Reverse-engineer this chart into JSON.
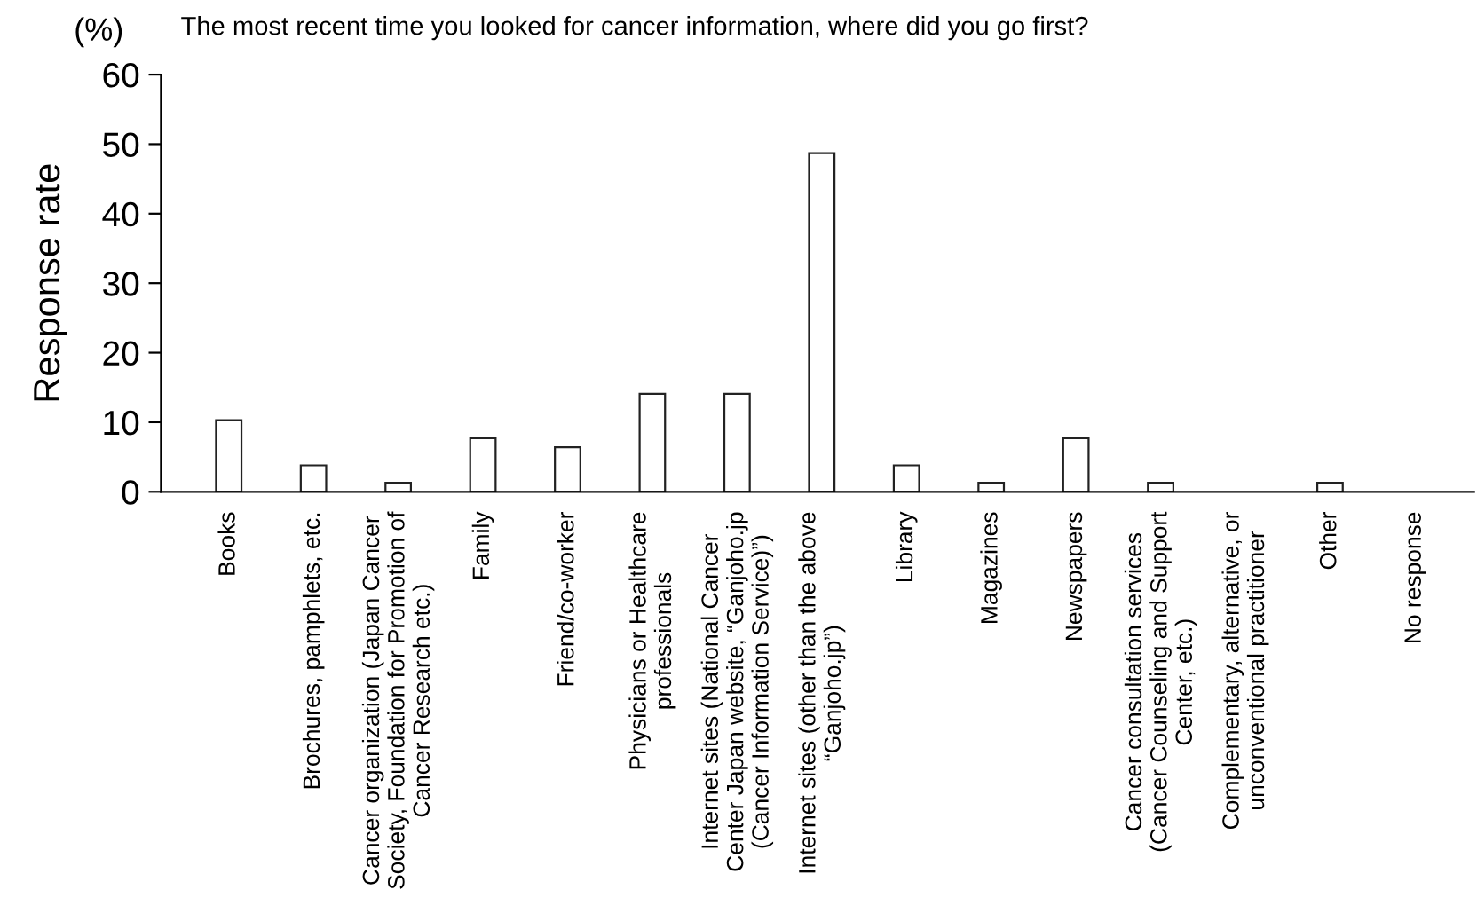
{
  "chart_data": {
    "type": "bar",
    "title": "The most recent time you looked for cancer information, where did you go first?",
    "ylabel": "Response rate",
    "annotations": [
      "(%)"
    ],
    "categories": [
      "Books",
      "Brochures, pamphlets, etc.",
      "Cancer organization (Japan Cancer\nSociety, Foundation for Promotion of\nCancer Research etc.)",
      "Family",
      "Friend/co-worker",
      "Physicians or Healthcare\nprofessionals",
      "Internet sites (National Cancer\nCenter Japan website, “Ganjoho.jp\n(Cancer Information Service)”)",
      "Internet sites (other than the above\n“Ganjoho.jp”)",
      "Library",
      "Magazines",
      "Newspapers",
      "Cancer consultation services\n(Cancer Counseling and Support\nCenter, etc.)",
      "Complementary, alternative, or\nunconventional practitioner",
      "Other",
      "No response"
    ],
    "values": [
      10.3,
      3.8,
      1.3,
      7.7,
      6.4,
      14.1,
      14.1,
      48.7,
      3.8,
      1.3,
      7.7,
      1.3,
      0,
      1.3,
      0
    ],
    "color": "#ffffff",
    "ylim": [
      0,
      60
    ],
    "yticks": [
      0,
      10,
      20,
      30,
      40,
      50,
      60
    ],
    "grid": false,
    "legend": false
  }
}
